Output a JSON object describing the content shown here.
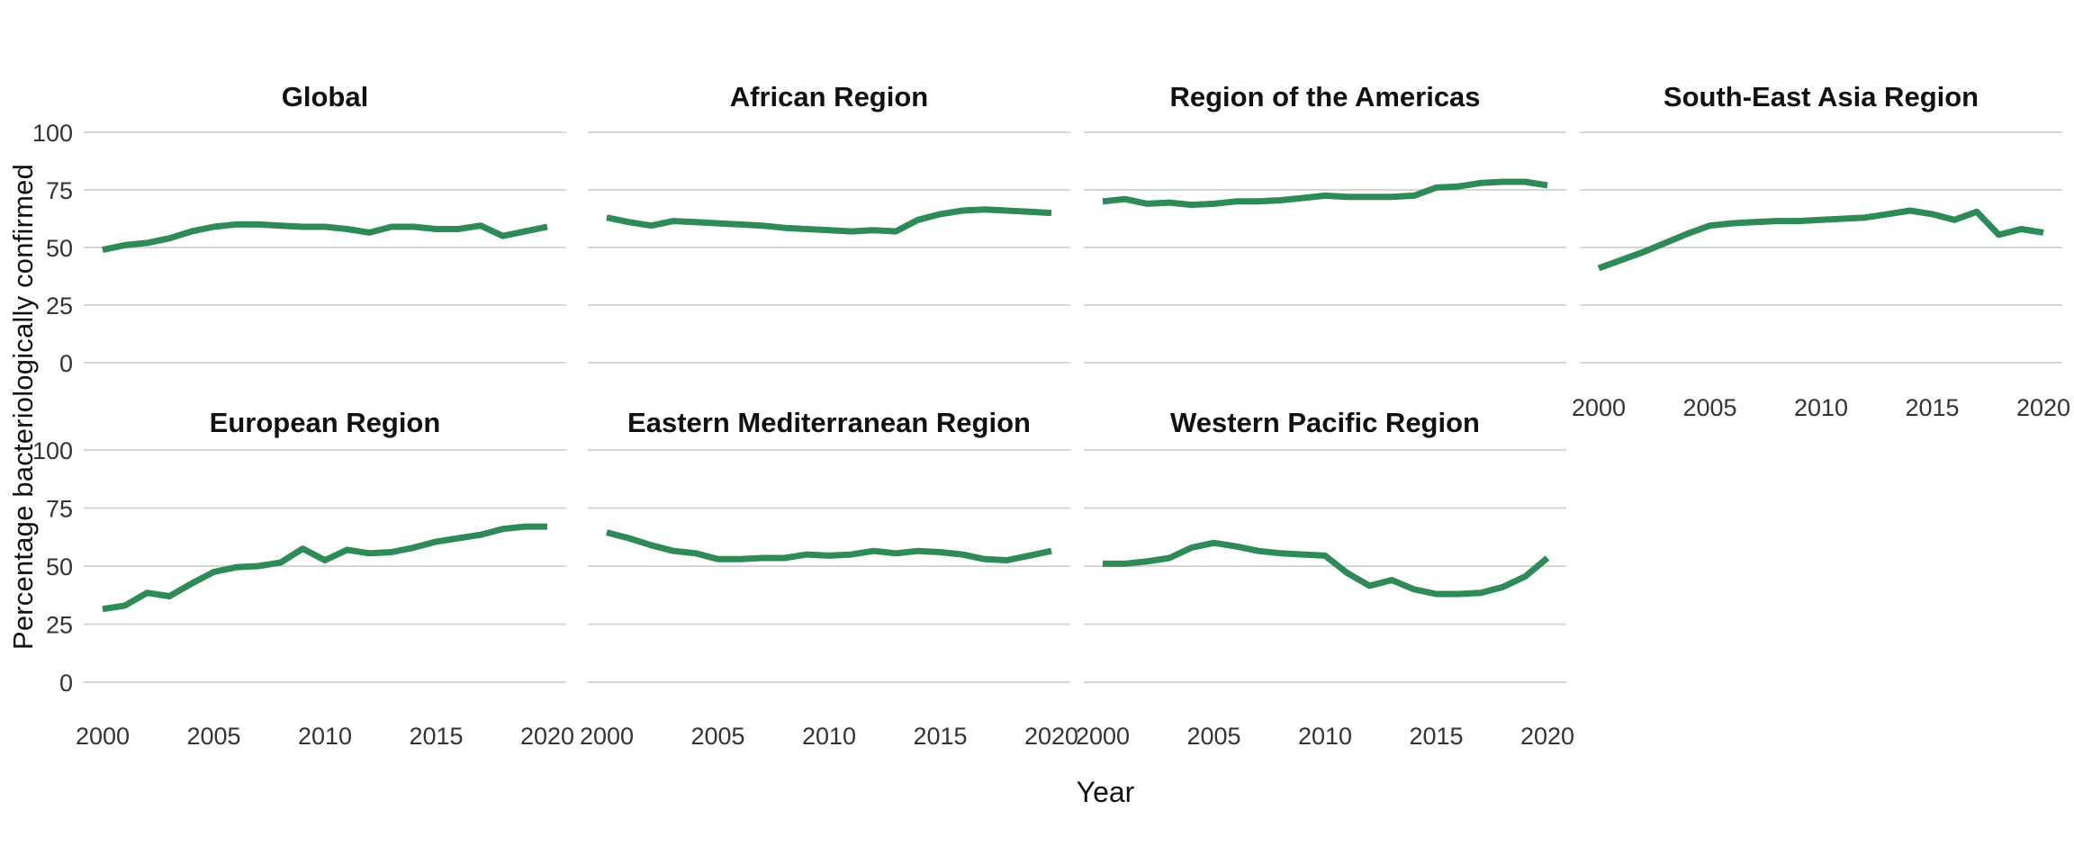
{
  "axes": {
    "y_title": "Percentage bacteriologically confirmed",
    "x_title": "Year",
    "y_ticks": [
      0,
      25,
      50,
      75,
      100
    ],
    "x_ticks": [
      2000,
      2005,
      2010,
      2015,
      2020
    ]
  },
  "style": {
    "line_color": "#2e8b57",
    "grid_color": "#d6d6d6",
    "title_color": "#111111",
    "tick_label_color": "#333333",
    "background": "#ffffff"
  },
  "chart_data": {
    "type": "line",
    "facets": true,
    "facet_columns": 4,
    "x": [
      2000,
      2001,
      2002,
      2003,
      2004,
      2005,
      2006,
      2007,
      2008,
      2009,
      2010,
      2011,
      2012,
      2013,
      2014,
      2015,
      2016,
      2017,
      2018,
      2019,
      2020
    ],
    "xlabel": "Year",
    "ylabel": "Percentage bacteriologically confirmed",
    "ylim": [
      0,
      100
    ],
    "x_tick_values": [
      2000,
      2005,
      2010,
      2015,
      2020
    ],
    "y_tick_values": [
      0,
      25,
      50,
      75,
      100
    ],
    "grid": "horizontal-only",
    "legend_position": "none",
    "series": [
      {
        "name": "Global",
        "values": [
          49,
          51,
          52,
          54,
          57,
          59,
          60,
          60,
          59.5,
          59,
          59,
          58,
          56.5,
          59,
          59,
          58,
          58,
          59.5,
          55,
          57,
          59
        ]
      },
      {
        "name": "African Region",
        "values": [
          63,
          61,
          59.5,
          61.5,
          61,
          60.5,
          60,
          59.5,
          58.5,
          58,
          57.5,
          57,
          57.5,
          57,
          62,
          64.5,
          66,
          66.5,
          66,
          65.5,
          65
        ]
      },
      {
        "name": "Region of the Americas",
        "values": [
          70,
          71,
          69,
          69.5,
          68.5,
          69,
          70,
          70,
          70.5,
          71.5,
          72.5,
          72,
          72,
          72,
          72.5,
          76,
          76.5,
          78,
          78.5,
          78.5,
          77
        ]
      },
      {
        "name": "South-East Asia Region",
        "values": [
          41,
          44.5,
          48,
          52,
          56,
          59.5,
          60.5,
          61,
          61.5,
          61.5,
          62,
          62.5,
          63,
          64.5,
          66,
          64.5,
          62,
          65.5,
          55.5,
          58,
          56.5
        ]
      },
      {
        "name": "European Region",
        "values": [
          31.5,
          33,
          38.5,
          37,
          42.5,
          47.5,
          49.5,
          50,
          51.5,
          57.5,
          52.5,
          57,
          55.5,
          56,
          58,
          60.5,
          62,
          63.5,
          66,
          67,
          67
        ]
      },
      {
        "name": "Eastern Mediterranean Region",
        "values": [
          64.5,
          62,
          59,
          56.5,
          55.5,
          53,
          53,
          53.5,
          53.5,
          55,
          54.5,
          55,
          56.5,
          55.5,
          56.5,
          56,
          55,
          53,
          52.5,
          54.5,
          56.5
        ]
      },
      {
        "name": "Western Pacific Region",
        "values": [
          51,
          51,
          52,
          53.5,
          58,
          60,
          58.5,
          56.5,
          55.5,
          55,
          54.5,
          47,
          41.5,
          44,
          40,
          38,
          38,
          38.5,
          41,
          45.5,
          53.5
        ]
      }
    ]
  }
}
